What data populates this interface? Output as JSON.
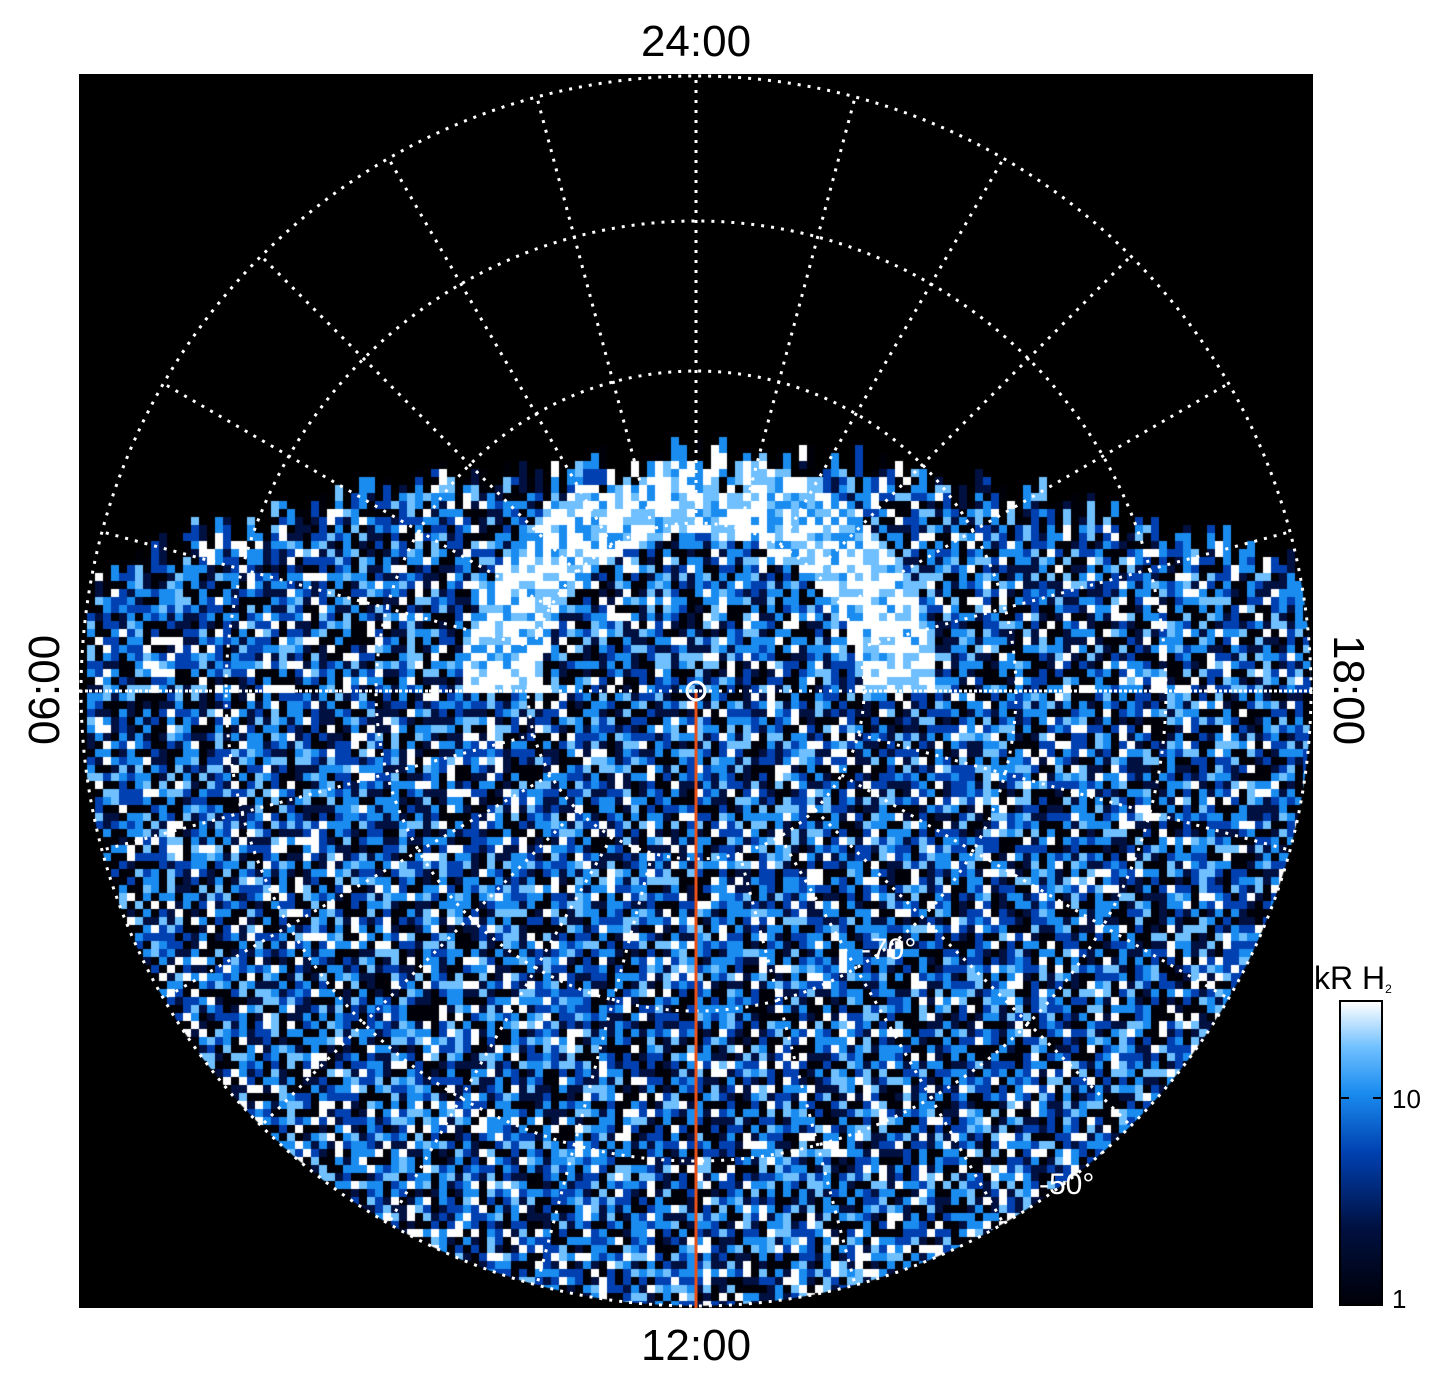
{
  "local_time_labels": {
    "top": "24:00",
    "bottom": "12:00",
    "left": "06:00",
    "right": "18:00"
  },
  "latitude_labels": [
    "-70°",
    "-50°"
  ],
  "colorbar": {
    "title": "kR H",
    "title_subscript": "2",
    "scale": "log",
    "tick_labels": [
      "10",
      "1"
    ],
    "colormap": [
      "#000008",
      "#001040",
      "#0040b0",
      "#1a8cf0",
      "#70c0ff",
      "#ffffff"
    ]
  },
  "colors": {
    "background": "#000000",
    "grid": "#ffffff",
    "meridian_line": "#e8501a"
  }
}
